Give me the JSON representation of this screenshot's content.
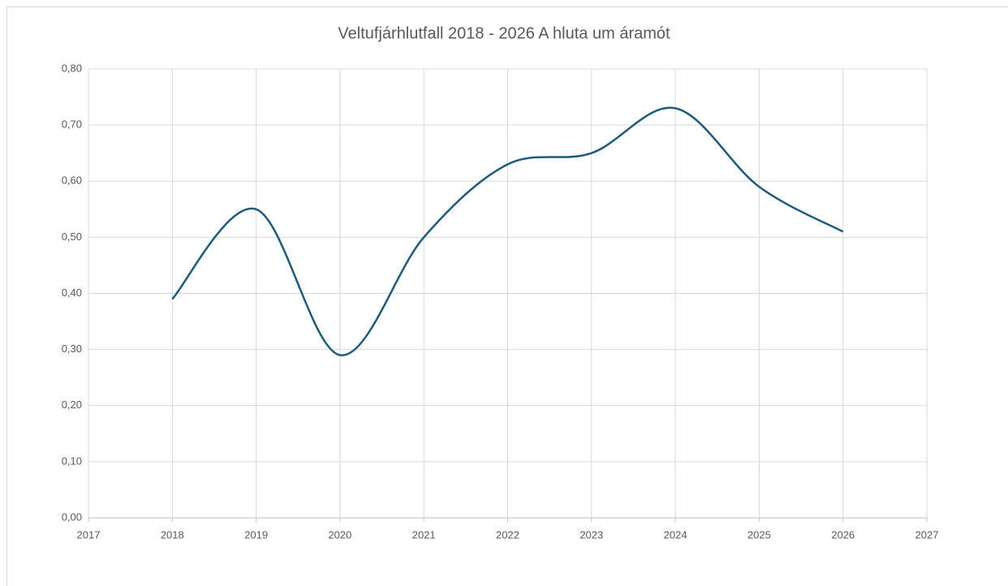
{
  "chart_data": {
    "type": "line",
    "title": "Veltufjárhlutfall 2018 - 2026 A  hluta um áramót",
    "x": [
      2018,
      2019,
      2020,
      2021,
      2022,
      2023,
      2024,
      2025,
      2026
    ],
    "series": [
      {
        "name": "Veltufjárhlutfall",
        "color": "#1f5b7a",
        "values": [
          0.39,
          0.55,
          0.29,
          0.5,
          0.63,
          0.65,
          0.73,
          0.59,
          0.51
        ]
      }
    ],
    "xlim": [
      2017,
      2027
    ],
    "xticks": [
      2017,
      2018,
      2019,
      2020,
      2021,
      2022,
      2023,
      2024,
      2025,
      2026,
      2027
    ],
    "ylim": [
      0,
      0.8
    ],
    "yticks": [
      {
        "value": 0,
        "label": "0,00"
      },
      {
        "value": 0.1,
        "label": "0,10"
      },
      {
        "value": 0.2,
        "label": "0,20"
      },
      {
        "value": 0.3,
        "label": "0,30"
      },
      {
        "value": 0.4,
        "label": "0,40"
      },
      {
        "value": 0.5,
        "label": "0,50"
      },
      {
        "value": 0.6,
        "label": "0,60"
      },
      {
        "value": 0.7,
        "label": "0,70"
      },
      {
        "value": 0.8,
        "label": "0,80"
      }
    ],
    "grid": true,
    "smooth": true,
    "legend": false
  }
}
